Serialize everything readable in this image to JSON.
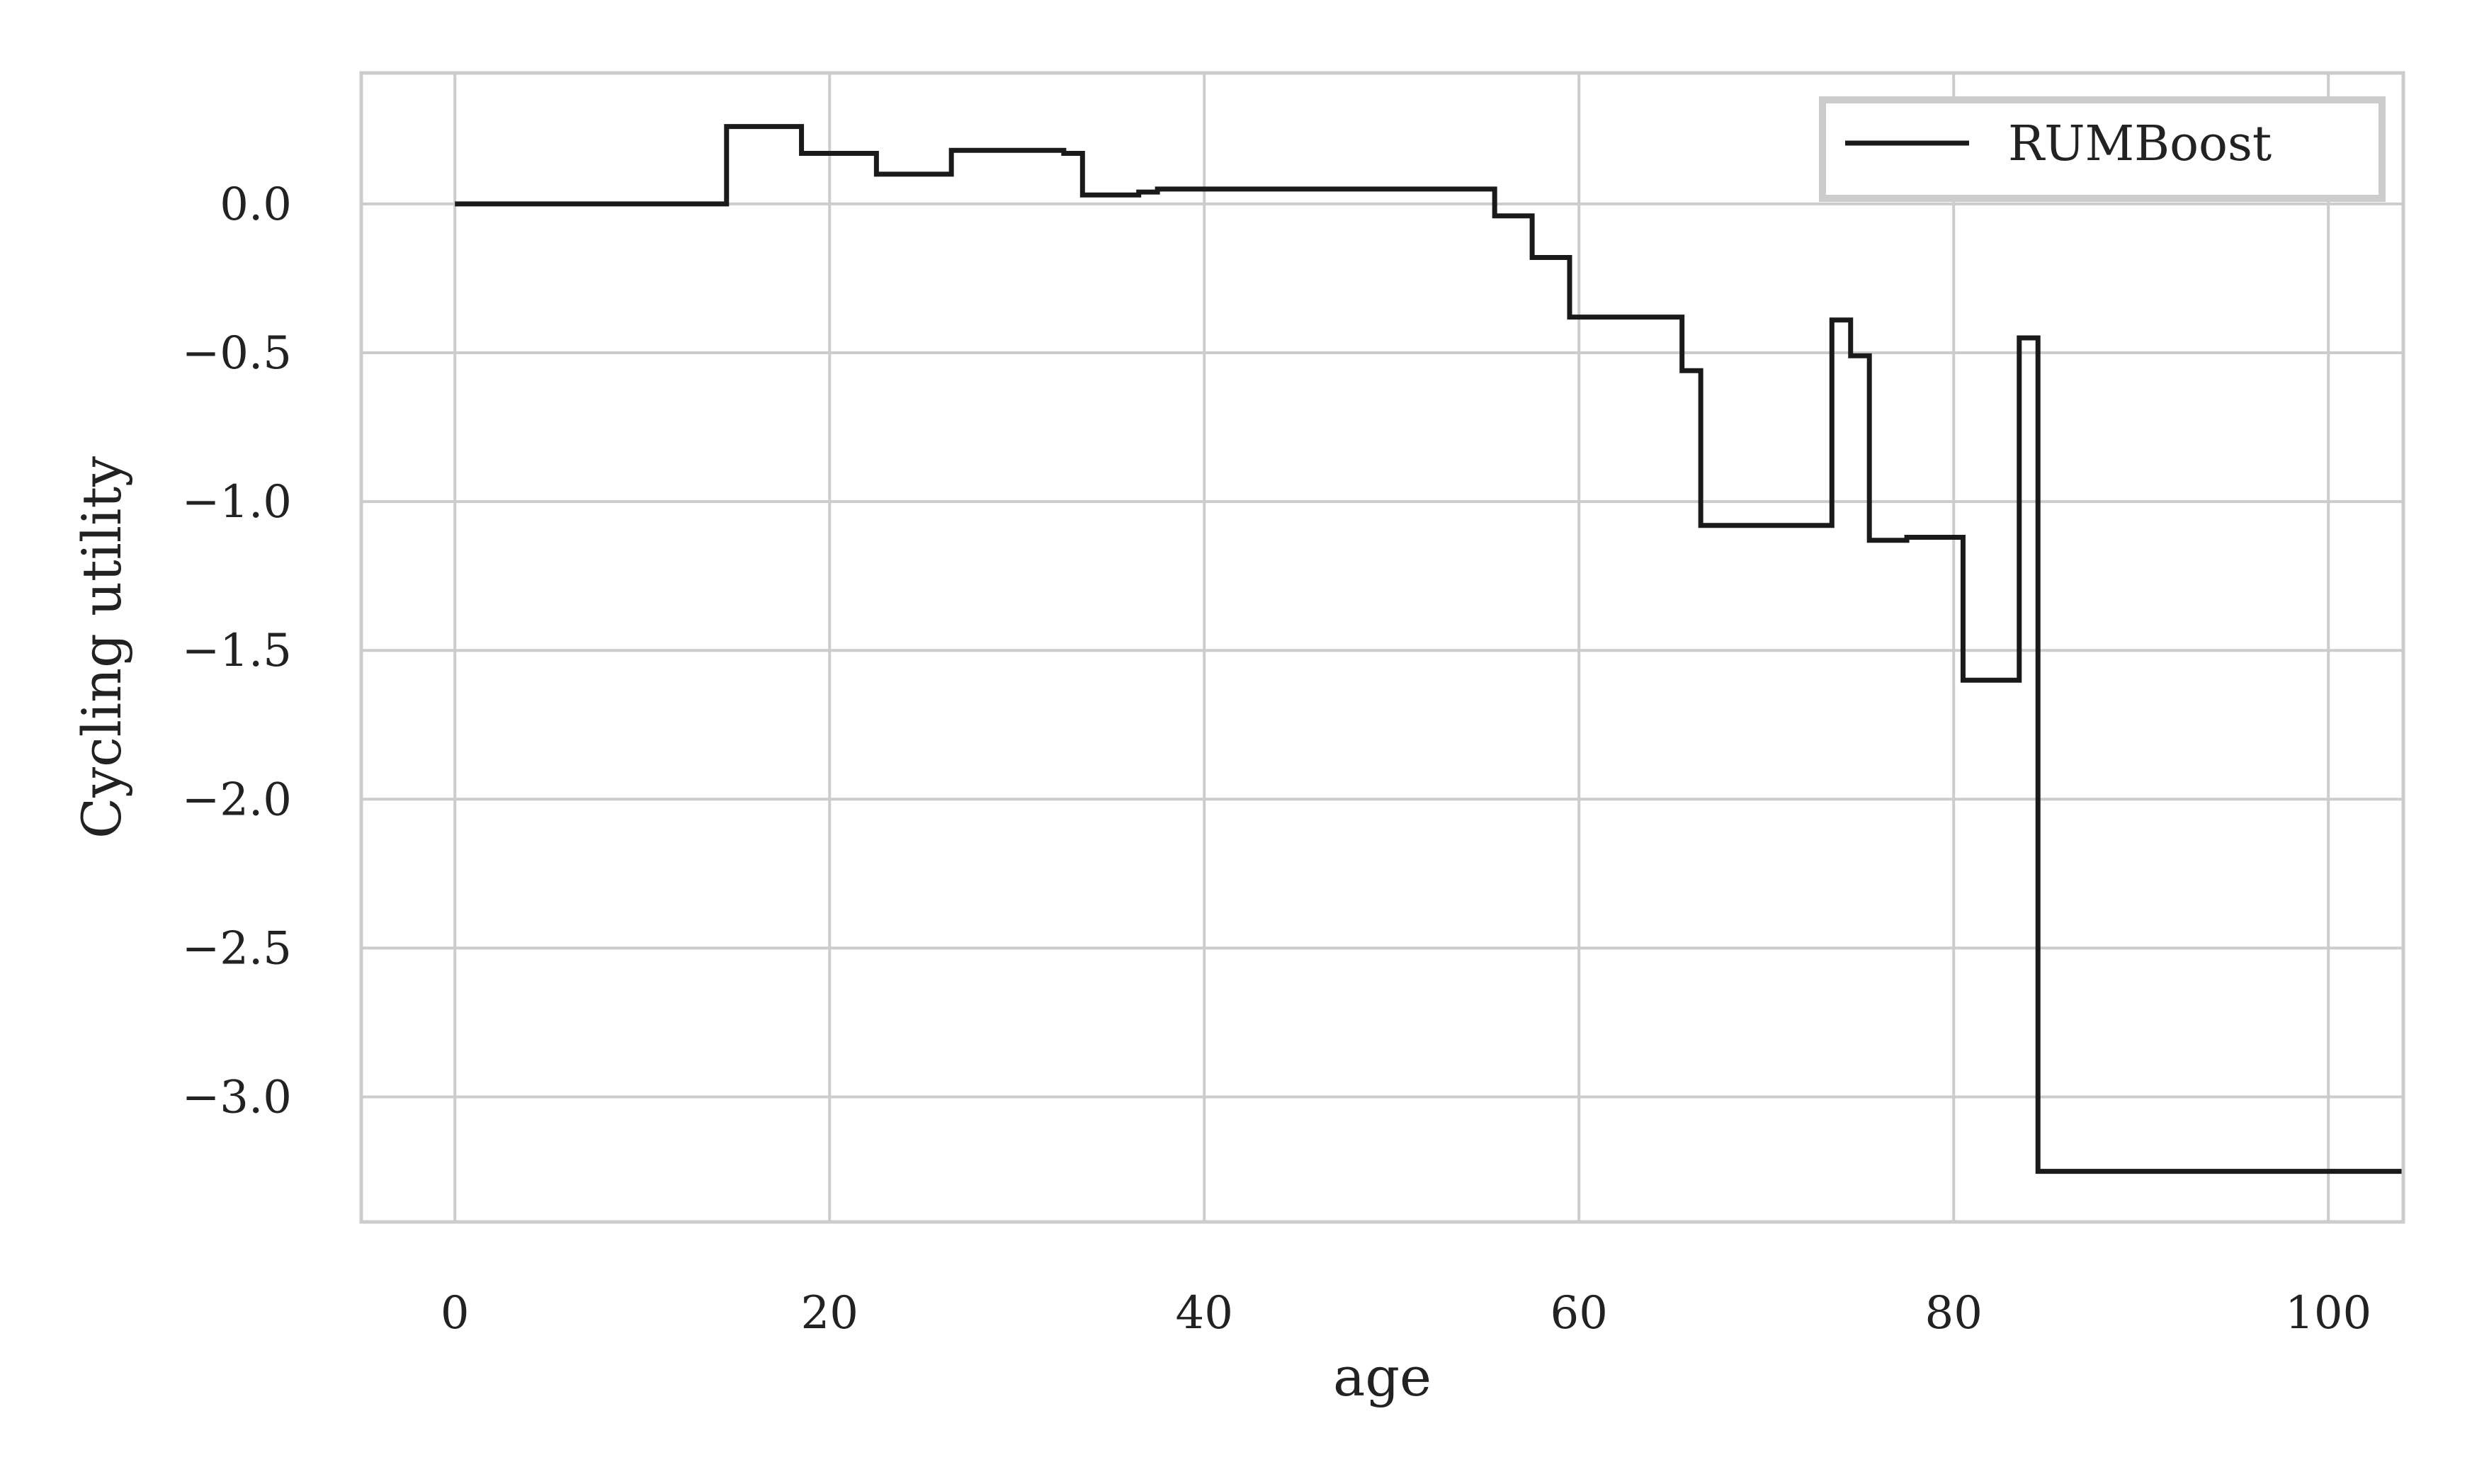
{
  "chart_data": {
    "type": "line",
    "step": "post",
    "xlabel": "age",
    "ylabel": "Cycling utility",
    "xlim": [
      -5,
      104
    ],
    "ylim": [
      -3.42,
      0.44
    ],
    "grid": true,
    "legend": {
      "placement": "top-right"
    },
    "x_ticks": [
      0,
      20,
      40,
      60,
      80,
      100
    ],
    "x_tick_labels": [
      "0",
      "20",
      "40",
      "60",
      "80",
      "100"
    ],
    "y_ticks": [
      0.0,
      -0.5,
      -1.0,
      -1.5,
      -2.0,
      -2.5,
      -3.0
    ],
    "y_tick_labels": [
      "0.0",
      "−0.5",
      "−1.0",
      "−1.5",
      "−2.0",
      "−2.5",
      "−3.0"
    ],
    "colors": {
      "line": "#1a1a1a",
      "grid": "#cccccc",
      "frame": "#cccccc"
    },
    "series": [
      {
        "name": "RUMBoost",
        "points": [
          [
            0,
            0.0
          ],
          [
            14.5,
            0.26
          ],
          [
            18.5,
            0.17
          ],
          [
            22.5,
            0.1
          ],
          [
            26.5,
            0.18
          ],
          [
            32.5,
            0.17
          ],
          [
            33.5,
            0.03
          ],
          [
            36.5,
            0.04
          ],
          [
            37.5,
            0.05
          ],
          [
            55.5,
            -0.04
          ],
          [
            57.5,
            -0.18
          ],
          [
            59.5,
            -0.38
          ],
          [
            65.5,
            -0.56
          ],
          [
            66.5,
            -1.08
          ],
          [
            73.5,
            -0.39
          ],
          [
            74.5,
            -0.51
          ],
          [
            75.5,
            -1.13
          ],
          [
            77.5,
            -1.12
          ],
          [
            80.5,
            -1.6
          ],
          [
            83.5,
            -0.45
          ],
          [
            84.5,
            -3.25
          ],
          [
            104,
            -3.25
          ]
        ]
      }
    ]
  }
}
